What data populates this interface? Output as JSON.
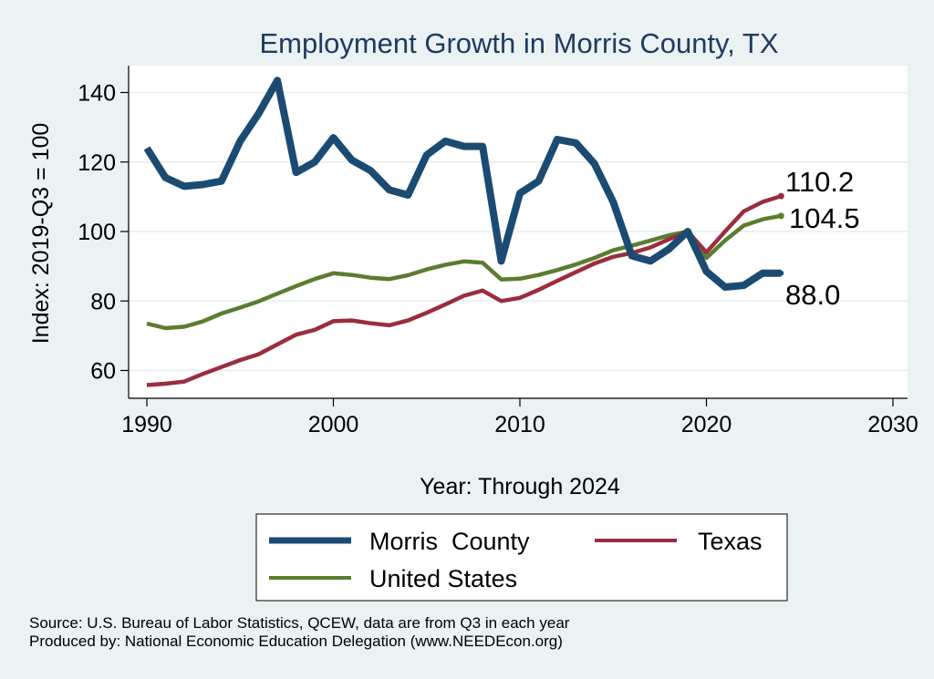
{
  "chart_data": {
    "type": "line",
    "title": "Employment Growth in Morris County, TX",
    "xlabel": "Year: Through 2024",
    "ylabel": "Index: 2019-Q3 = 100",
    "xlim": [
      1990,
      2030
    ],
    "ylim": [
      52,
      148
    ],
    "x_ticks": [
      1990,
      2000,
      2010,
      2020,
      2030
    ],
    "y_ticks": [
      60,
      80,
      100,
      120,
      140
    ],
    "grid": true,
    "legend_position": "bottom",
    "x": [
      1990,
      1991,
      1992,
      1993,
      1994,
      1995,
      1996,
      1997,
      1998,
      1999,
      2000,
      2001,
      2002,
      2003,
      2004,
      2005,
      2006,
      2007,
      2008,
      2009,
      2010,
      2011,
      2012,
      2013,
      2014,
      2015,
      2016,
      2017,
      2018,
      2019,
      2020,
      2021,
      2022,
      2023,
      2024
    ],
    "series": [
      {
        "name": "Morris  County",
        "color": "#1b4b72",
        "values": [
          124,
          115.5,
          113,
          113.5,
          114.5,
          126,
          134,
          143.5,
          117,
          120,
          127,
          120.5,
          117.5,
          112,
          110.5,
          122,
          126,
          124.5,
          124.5,
          91.5,
          111,
          114.5,
          126.5,
          125.5,
          119.5,
          108.5,
          93,
          91.5,
          95,
          100,
          88.5,
          84,
          84.5,
          88,
          88
        ],
        "end_label": "88.0"
      },
      {
        "name": "Texas",
        "color": "#9b2d3e",
        "values": [
          55.8,
          56.2,
          56.8,
          59,
          61,
          63,
          64.7,
          67.5,
          70.3,
          71.7,
          74.2,
          74.4,
          73.6,
          73,
          74.4,
          76.6,
          79,
          81.5,
          83,
          80,
          80.9,
          83.2,
          85.8,
          88.3,
          90.8,
          92.7,
          93.8,
          95.4,
          97.8,
          100,
          94,
          100,
          105.8,
          108.5,
          110.2
        ],
        "end_label": "110.2"
      },
      {
        "name": "United States",
        "color": "#5a7d2f",
        "values": [
          73.5,
          72.2,
          72.6,
          74.1,
          76.4,
          78.1,
          79.9,
          82.1,
          84.3,
          86.3,
          88,
          87.5,
          86.7,
          86.3,
          87.4,
          89.1,
          90.4,
          91.4,
          91,
          86.2,
          86.4,
          87.5,
          88.9,
          90.5,
          92.4,
          94.6,
          95.9,
          97.4,
          98.9,
          100,
          92.4,
          97.4,
          101.7,
          103.5,
          104.5
        ],
        "end_label": "104.5"
      }
    ]
  },
  "source_lines": [
    "Source: U.S. Bureau of Labor Statistics, QCEW, data are from Q3 in each year",
    "Produced by: National Economic Education Delegation (www.NEEDEcon.org)"
  ]
}
